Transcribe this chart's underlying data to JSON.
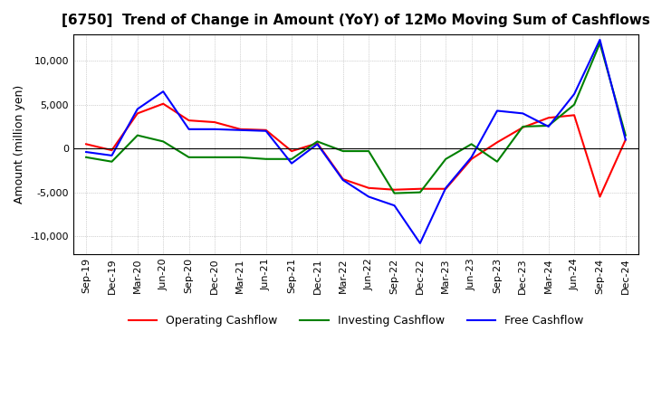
{
  "title": "[6750]  Trend of Change in Amount (YoY) of 12Mo Moving Sum of Cashflows",
  "ylabel": "Amount (million yen)",
  "ylim": [
    -12000,
    13000
  ],
  "yticks": [
    -10000,
    -5000,
    0,
    5000,
    10000
  ],
  "legend_labels": [
    "Operating Cashflow",
    "Investing Cashflow",
    "Free Cashflow"
  ],
  "legend_colors": [
    "#ff0000",
    "#008000",
    "#0000ff"
  ],
  "x_labels": [
    "Sep-19",
    "Dec-19",
    "Mar-20",
    "Jun-20",
    "Sep-20",
    "Dec-20",
    "Mar-21",
    "Jun-21",
    "Sep-21",
    "Dec-21",
    "Mar-22",
    "Jun-22",
    "Sep-22",
    "Dec-22",
    "Mar-23",
    "Jun-23",
    "Sep-23",
    "Dec-23",
    "Mar-24",
    "Jun-24",
    "Sep-24",
    "Dec-24"
  ],
  "operating": [
    500,
    -200,
    4000,
    5100,
    3200,
    3000,
    2200,
    2100,
    -300,
    600,
    -3500,
    -4500,
    -4700,
    -4600,
    -4600,
    -1200,
    700,
    2400,
    3500,
    3800,
    -5500,
    1000
  ],
  "investing": [
    -1000,
    -1500,
    1500,
    800,
    -1000,
    -1000,
    -1000,
    -1200,
    -1200,
    800,
    -300,
    -300,
    -5100,
    -5000,
    -1200,
    500,
    -1500,
    2500,
    2600,
    5000,
    12000,
    1500
  ],
  "free": [
    -400,
    -800,
    4500,
    6500,
    2200,
    2200,
    2100,
    2000,
    -1700,
    500,
    -3600,
    -5500,
    -6500,
    -10800,
    -4500,
    -1000,
    4300,
    4000,
    2500,
    6200,
    12400,
    1000
  ],
  "background": "#ffffff",
  "grid_color": "#aaaaaa"
}
